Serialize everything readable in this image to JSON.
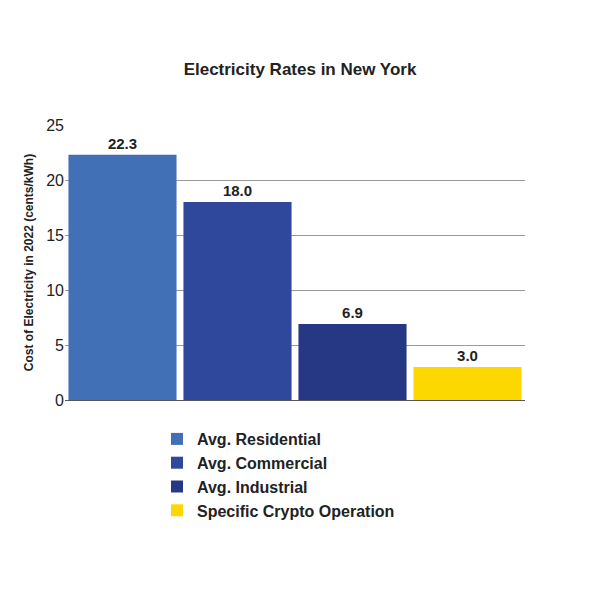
{
  "chart_data": {
    "type": "bar",
    "title": "Electricity Rates in New York",
    "y_label": "Cost of Electricity in 2022 (cents/kWh)",
    "categories": [
      "Avg. Residential",
      "Avg. Commercial",
      "Avg. Industrial",
      "Specific Crypto Operation"
    ],
    "values": [
      22.3,
      18.0,
      6.9,
      3.0
    ],
    "value_labels": [
      "22.3",
      "18.0",
      "6.9",
      "3.0"
    ],
    "colors": [
      "#4270b6",
      "#2f489c",
      "#263883",
      "#fcd800"
    ],
    "ylim": [
      0,
      25
    ],
    "yticks": [
      0,
      5,
      10,
      15,
      20,
      25
    ],
    "grid": true,
    "legend": "bottom",
    "data_labels": true,
    "tick_labels": "y"
  }
}
